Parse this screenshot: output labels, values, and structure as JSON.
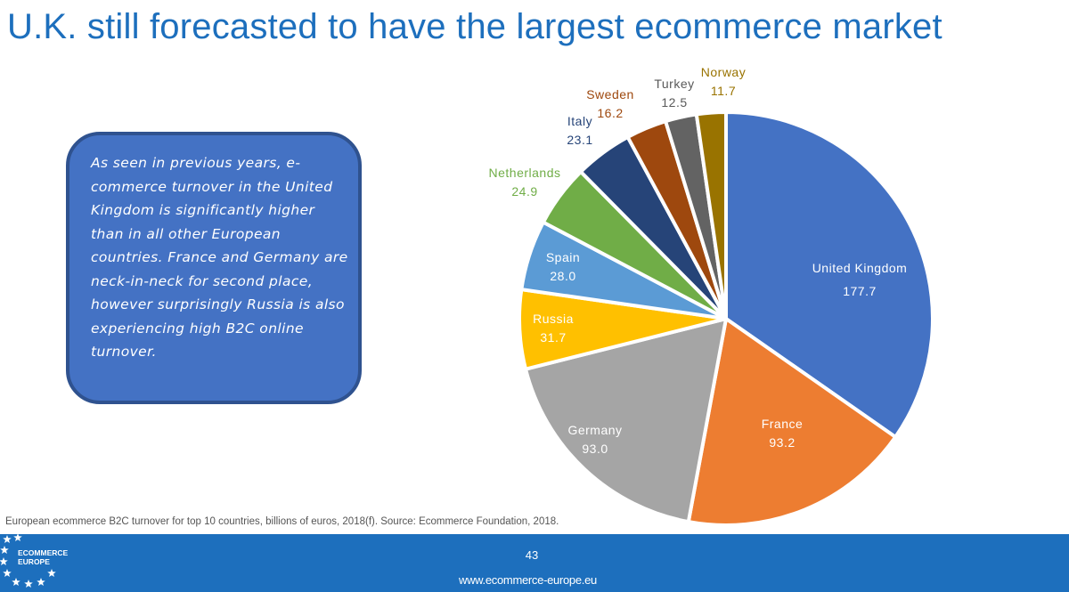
{
  "slide": {
    "title": "U.K. still forecasted to have the largest ecommerce market",
    "callout_text": "As seen in previous years, e-commerce turnover in the United Kingdom is significantly higher than in all other European countries. France and Germany are neck-in-neck for second place, however surprisingly Russia is also experiencing high B2C online turnover.",
    "source": "European ecommerce B2C turnover for top 10 countries, billions of euros, 2018(f). Source: Ecommerce Foundation, 2018.",
    "page_number": "43",
    "website": "www.ecommerce-europe.eu",
    "logo_text_line1": "ECOMMERCE",
    "logo_text_line2": "EUROPE"
  },
  "colors": {
    "title": "#1d6fbd",
    "footer": "#1d6fbd",
    "callout_fill": "#4472c4",
    "callout_border": "#2f528f"
  },
  "chart_data": {
    "type": "pie",
    "title": "",
    "unit": "billions of euros",
    "categories": [
      "United Kingdom",
      "France",
      "Germany",
      "Russia",
      "Spain",
      "Netherlands",
      "Italy",
      "Sweden",
      "Turkey",
      "Norway"
    ],
    "values": [
      177.7,
      93.2,
      93.0,
      31.7,
      28.0,
      24.9,
      23.1,
      16.2,
      12.5,
      11.7
    ],
    "value_labels": [
      "177.7",
      "93.2",
      "93.0",
      "31.7",
      "28.0",
      "24.9",
      "23.1",
      "16.2",
      "12.5",
      "11.7"
    ],
    "colors": [
      "#4472c4",
      "#ed7d31",
      "#a5a5a5",
      "#ffc000",
      "#5b9bd5",
      "#70ad47",
      "#264478",
      "#9e480e",
      "#636363",
      "#997300"
    ],
    "label_colors": [
      "#ffffff",
      "#ffffff",
      "#ffffff",
      "#ffffff",
      "#ffffff",
      "#70ad47",
      "#264478",
      "#9e480e",
      "#595959",
      "#997300"
    ],
    "legend": "none"
  }
}
